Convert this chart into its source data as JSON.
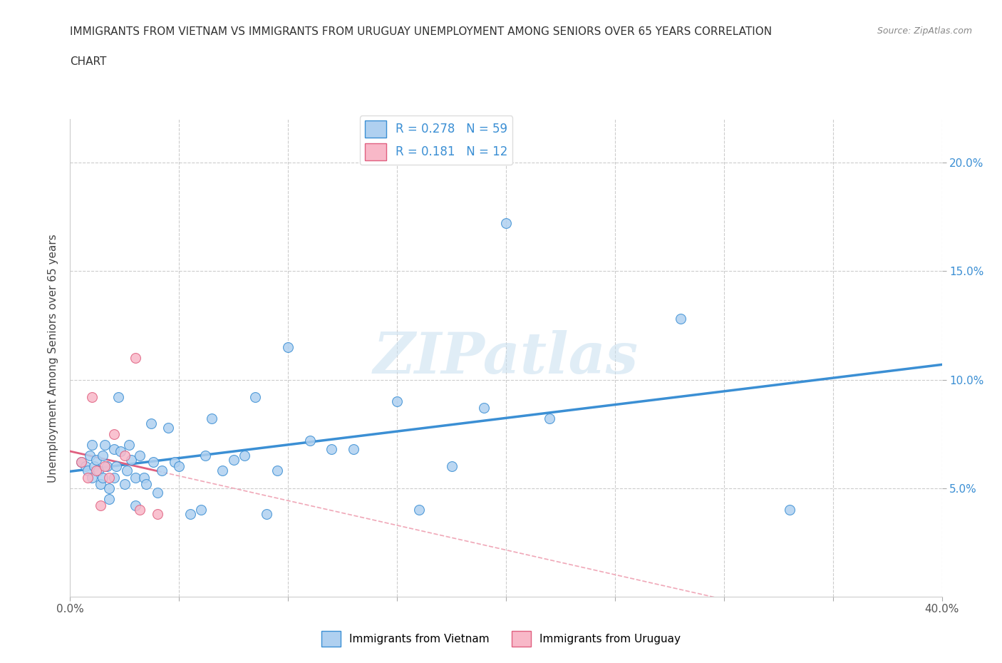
{
  "title_line1": "IMMIGRANTS FROM VIETNAM VS IMMIGRANTS FROM URUGUAY UNEMPLOYMENT AMONG SENIORS OVER 65 YEARS CORRELATION",
  "title_line2": "CHART",
  "source": "Source: ZipAtlas.com",
  "ylabel": "Unemployment Among Seniors over 65 years",
  "xlim": [
    0.0,
    0.4
  ],
  "ylim": [
    0.0,
    0.22
  ],
  "vietnam_R": 0.278,
  "vietnam_N": 59,
  "uruguay_R": 0.181,
  "uruguay_N": 12,
  "vietnam_color": "#afd0f0",
  "vietnam_line_color": "#3b8fd4",
  "uruguay_color": "#f8b8c8",
  "uruguay_line_color": "#e06080",
  "dashed_color": "#f0a8b8",
  "watermark": "ZIPatlas",
  "vietnam_scatter_x": [
    0.005,
    0.007,
    0.008,
    0.009,
    0.01,
    0.01,
    0.011,
    0.012,
    0.013,
    0.014,
    0.015,
    0.015,
    0.016,
    0.017,
    0.018,
    0.018,
    0.02,
    0.02,
    0.021,
    0.022,
    0.023,
    0.025,
    0.026,
    0.027,
    0.028,
    0.03,
    0.03,
    0.032,
    0.034,
    0.035,
    0.037,
    0.038,
    0.04,
    0.042,
    0.045,
    0.048,
    0.05,
    0.055,
    0.06,
    0.062,
    0.065,
    0.07,
    0.075,
    0.08,
    0.085,
    0.09,
    0.095,
    0.1,
    0.11,
    0.12,
    0.13,
    0.15,
    0.16,
    0.175,
    0.19,
    0.2,
    0.22,
    0.28,
    0.33
  ],
  "vietnam_scatter_y": [
    0.062,
    0.06,
    0.058,
    0.065,
    0.07,
    0.055,
    0.06,
    0.063,
    0.058,
    0.052,
    0.065,
    0.055,
    0.07,
    0.06,
    0.05,
    0.045,
    0.068,
    0.055,
    0.06,
    0.092,
    0.067,
    0.052,
    0.058,
    0.07,
    0.063,
    0.055,
    0.042,
    0.065,
    0.055,
    0.052,
    0.08,
    0.062,
    0.048,
    0.058,
    0.078,
    0.062,
    0.06,
    0.038,
    0.04,
    0.065,
    0.082,
    0.058,
    0.063,
    0.065,
    0.092,
    0.038,
    0.058,
    0.115,
    0.072,
    0.068,
    0.068,
    0.09,
    0.04,
    0.06,
    0.087,
    0.172,
    0.082,
    0.128,
    0.04
  ],
  "uruguay_scatter_x": [
    0.005,
    0.008,
    0.01,
    0.012,
    0.014,
    0.016,
    0.018,
    0.02,
    0.025,
    0.03,
    0.032,
    0.04
  ],
  "uruguay_scatter_y": [
    0.062,
    0.055,
    0.092,
    0.058,
    0.042,
    0.06,
    0.055,
    0.075,
    0.065,
    0.11,
    0.04,
    0.038
  ]
}
